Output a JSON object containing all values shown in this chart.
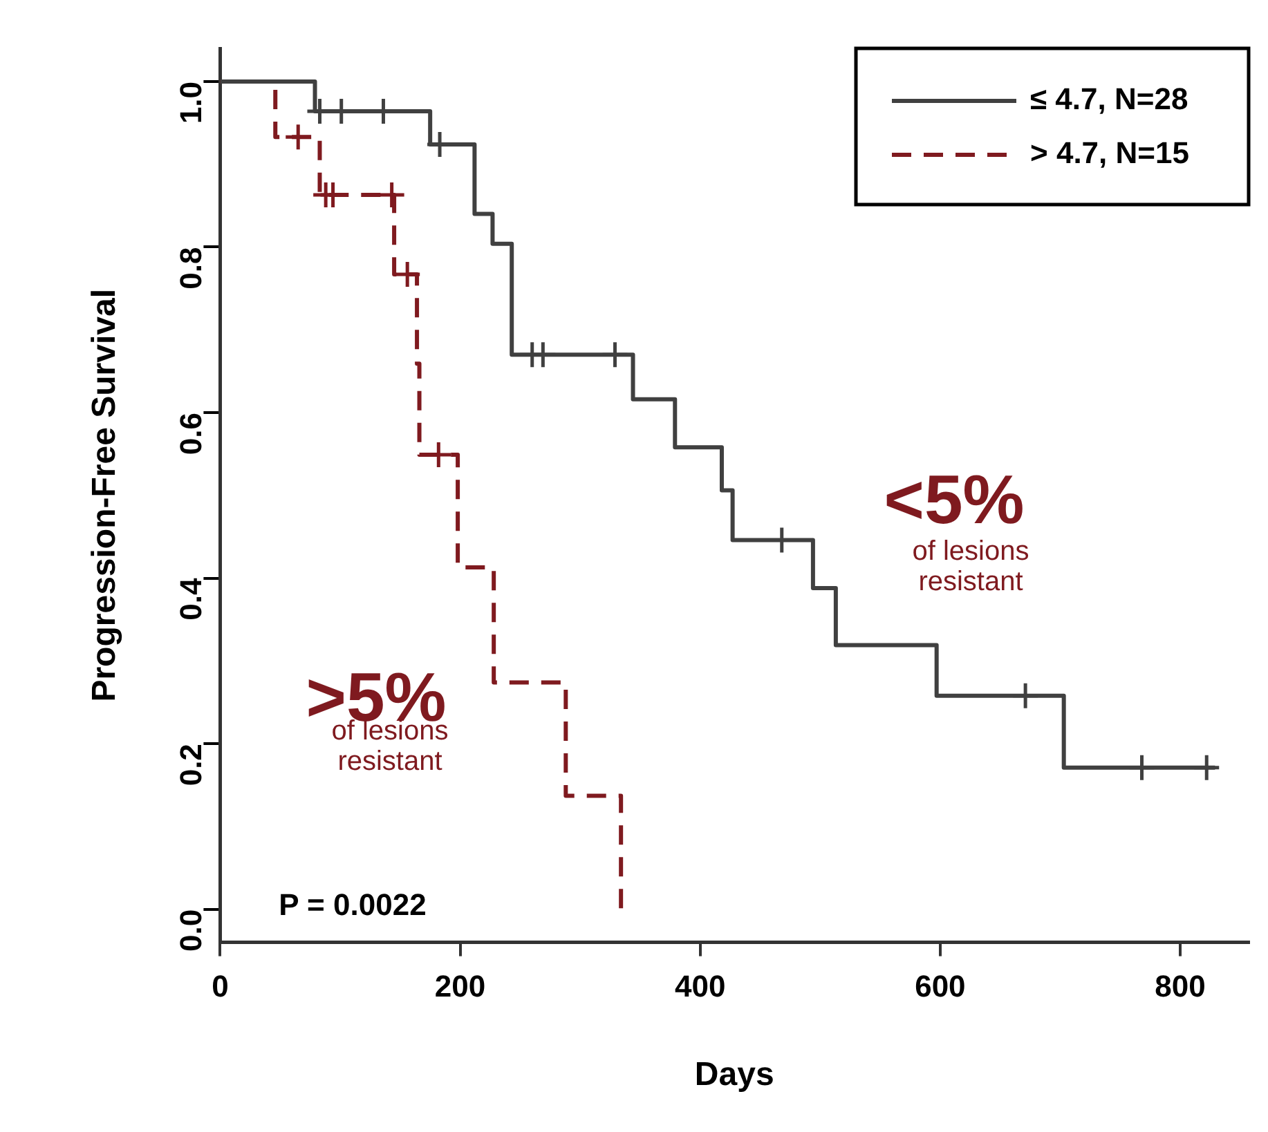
{
  "chart_data": {
    "type": "step",
    "xlabel": "Days",
    "ylabel": "Progression-Free Survival",
    "xlim": [
      0,
      857
    ],
    "ylim": [
      -0.04,
      1.04
    ],
    "xticks": [
      0,
      200,
      400,
      600,
      800
    ],
    "yticks": [
      {
        "value": 0,
        "label": "0.0"
      },
      {
        "value": 0.2,
        "label": "0.2"
      },
      {
        "value": 0.4,
        "label": "0.4"
      },
      {
        "value": 0.6,
        "label": "0.6"
      },
      {
        "value": 0.8,
        "label": "0.8"
      },
      {
        "value": 1,
        "label": "1.0"
      }
    ],
    "grid": false,
    "legend": "top right",
    "series": [
      {
        "name": "≤ 4.7, N=28",
        "color": "#404040",
        "line_style": "solid",
        "x": [
          0,
          79,
          175,
          212,
          227,
          243,
          344,
          379,
          418,
          427,
          494,
          513,
          597,
          703,
          829
        ],
        "values": [
          1,
          0.964,
          0.924,
          0.84,
          0.804,
          0.67,
          0.616,
          0.558,
          0.506,
          0.446,
          0.388,
          0.319,
          0.258,
          0.171,
          0.171
        ]
      },
      {
        "name": "> 4.7, N=15",
        "color": "#7f1a1f",
        "line_style": "dashed",
        "x": [
          0,
          46,
          83,
          145,
          164,
          166,
          198,
          228,
          288,
          334
        ],
        "values": [
          1,
          0.933,
          0.863,
          0.767,
          0.659,
          0.549,
          0.413,
          0.274,
          0.137,
          0
        ]
      },
      {
        "type": "scatter",
        "marker": "cross",
        "color": "#404040",
        "x": [
          83,
          101,
          136,
          183,
          260,
          269,
          329,
          468,
          671,
          768,
          822
        ],
        "values": [
          0.964,
          0.964,
          0.964,
          0.924,
          0.67,
          0.67,
          0.67,
          0.446,
          0.258,
          0.171,
          0.171
        ]
      },
      {
        "type": "scatter",
        "marker": "cross",
        "color": "#7f1a1f",
        "x": [
          65,
          88,
          94,
          143,
          156,
          182
        ],
        "values": [
          0.933,
          0.863,
          0.863,
          0.863,
          0.767,
          0.549
        ]
      }
    ],
    "annotations": [
      "<5%",
      "of lesions resistant",
      ">5%",
      "of lesions resistant",
      "P = 0.0022"
    ]
  }
}
